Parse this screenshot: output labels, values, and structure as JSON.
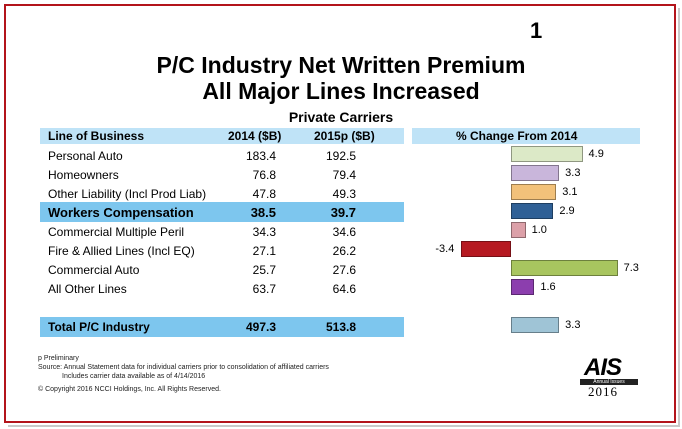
{
  "slide_number": "1",
  "title_line1": "P/C Industry Net Written Premium",
  "title_line2": "All Major Lines Increased",
  "subtitle": "Private Carriers",
  "headers": {
    "line": "Line of Business",
    "y2014": "2014 ($B)",
    "y2015": "2015p ($B)",
    "change": "% Change From 2014"
  },
  "chart_data": {
    "type": "bar",
    "orientation": "horizontal",
    "title": "% Change From 2014",
    "categories": [
      "Personal Auto",
      "Homeowners",
      "Other Liability (Incl Prod Liab)",
      "Workers Compensation",
      "Commercial Multiple Peril",
      "Fire & Allied Lines (Incl EQ)",
      "Commercial Auto",
      "All Other Lines",
      "Total P/C Industry"
    ],
    "values": [
      4.9,
      3.3,
      3.1,
      2.9,
      1.0,
      -3.4,
      7.3,
      1.6,
      3.3
    ],
    "value_labels": [
      "4.9",
      "3.3",
      "3.1",
      "2.9",
      "1.0",
      "-3.4",
      "7.3",
      "1.6",
      "3.3"
    ],
    "colors": [
      "#dce9c7",
      "#c9b6db",
      "#f2c17a",
      "#2f6096",
      "#dca0a8",
      "#b61a22",
      "#a8c55f",
      "#8c3eae",
      "#9fc4d6"
    ]
  },
  "rows": [
    {
      "line": "Personal Auto",
      "y2014": "183.4",
      "y2015": "192.5"
    },
    {
      "line": "Homeowners",
      "y2014": "76.8",
      "y2015": "79.4"
    },
    {
      "line": "Other Liability (Incl Prod Liab)",
      "y2014": "47.8",
      "y2015": "49.3"
    },
    {
      "line": "Workers Compensation",
      "y2014": "38.5",
      "y2015": "39.7"
    },
    {
      "line": "Commercial Multiple Peril",
      "y2014": "34.3",
      "y2015": "34.6"
    },
    {
      "line": "Fire & Allied Lines (Incl EQ)",
      "y2014": "27.1",
      "y2015": "26.2"
    },
    {
      "line": "Commercial Auto",
      "y2014": "25.7",
      "y2015": "27.6"
    },
    {
      "line": "All Other Lines",
      "y2014": "63.7",
      "y2015": "64.6"
    }
  ],
  "total": {
    "line": "Total P/C Industry",
    "y2014": "497.3",
    "y2015": "513.8"
  },
  "footnotes": {
    "p": "p Preliminary",
    "source": "Source: Annual Statement data for individual carriers prior to consolidation of affiliated carriers",
    "includes": "Includes carrier data available as of 4/14/2016",
    "copyright": "© Copyright 2016 NCCI Holdings, Inc. All Rights Reserved."
  },
  "logo": {
    "text": "AIS",
    "tagline": "Annual Issues Symposium",
    "year": "2016"
  },
  "colors": {
    "border": "#b3141b",
    "header_band": "#bfe3f7",
    "highlight_band": "#7dc6ee"
  }
}
